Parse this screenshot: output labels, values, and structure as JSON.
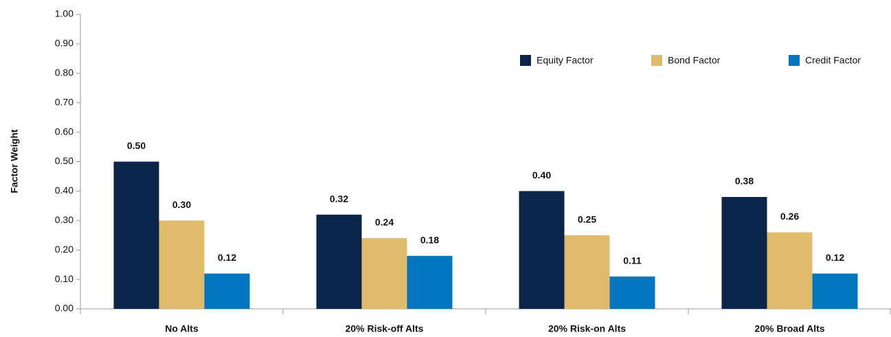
{
  "chart_data": {
    "type": "bar",
    "y_label": "Factor Weight",
    "categories": [
      "No Alts",
      "20% Risk-off Alts",
      "20% Risk-on Alts",
      "20% Broad Alts"
    ],
    "series": [
      {
        "name": "Equity Factor",
        "color": "#0b2449",
        "values": [
          0.5,
          0.32,
          0.4,
          0.38
        ],
        "value_labels": [
          "0.50",
          "0.32",
          "0.40",
          "0.38"
        ]
      },
      {
        "name": "Bond Factor",
        "color": "#dfbb6b",
        "values": [
          0.3,
          0.24,
          0.25,
          0.26
        ],
        "value_labels": [
          "0.30",
          "0.24",
          "0.25",
          "0.26"
        ]
      },
      {
        "name": "Credit Factor",
        "color": "#0477c0",
        "values": [
          0.12,
          0.18,
          0.11,
          0.12
        ],
        "value_labels": [
          "0.12",
          "0.18",
          "0.11",
          "0.12"
        ]
      }
    ],
    "ylim": [
      0,
      1
    ],
    "yticks": [
      {
        "value": 0,
        "label": "0.00"
      },
      {
        "value": 0.1,
        "label": "0.10"
      },
      {
        "value": 0.2,
        "label": "0.20"
      },
      {
        "value": 0.3,
        "label": "0.30"
      },
      {
        "value": 0.4,
        "label": "0.40"
      },
      {
        "value": 0.5,
        "label": "0.50"
      },
      {
        "value": 0.6,
        "label": "0.60"
      },
      {
        "value": 0.7,
        "label": "0.70"
      },
      {
        "value": 0.8,
        "label": "0.80"
      },
      {
        "value": 0.9,
        "label": "0.90"
      },
      {
        "value": 1,
        "label": "1.00"
      }
    ],
    "legend": "upper right"
  }
}
